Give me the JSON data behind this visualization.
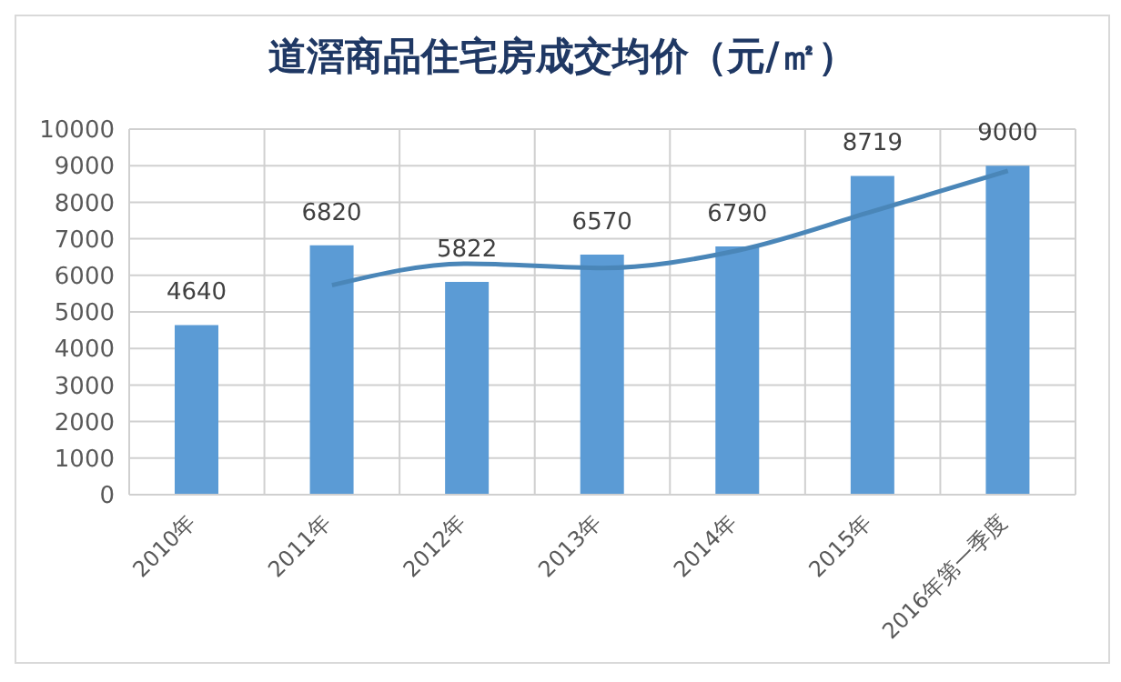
{
  "chart_data": {
    "type": "bar",
    "title": "道滘商品住宅房成交均价（元/㎡）",
    "categories": [
      "2010年",
      "2011年",
      "2012年",
      "2013年",
      "2014年",
      "2015年",
      "2016年第一季度"
    ],
    "series": [
      {
        "color": "#5b9bd5",
        "values": [
          4640,
          6820,
          5822,
          6570,
          6790,
          8719,
          9000
        ],
        "value_labels": [
          "4640",
          "6820",
          "5822",
          "6570",
          "6790",
          "8719",
          "9000"
        ]
      },
      {
        "type": "line",
        "color": "#4a86b8",
        "values": [
          null,
          5730,
          6320,
          6200,
          6680,
          7750,
          8860
        ]
      }
    ],
    "ylim": [
      0,
      10000
    ],
    "yticks": [
      0,
      1000,
      2000,
      3000,
      4000,
      5000,
      6000,
      7000,
      8000,
      9000,
      10000
    ],
    "grid": true,
    "marker": "none",
    "line_style": "solid"
  }
}
